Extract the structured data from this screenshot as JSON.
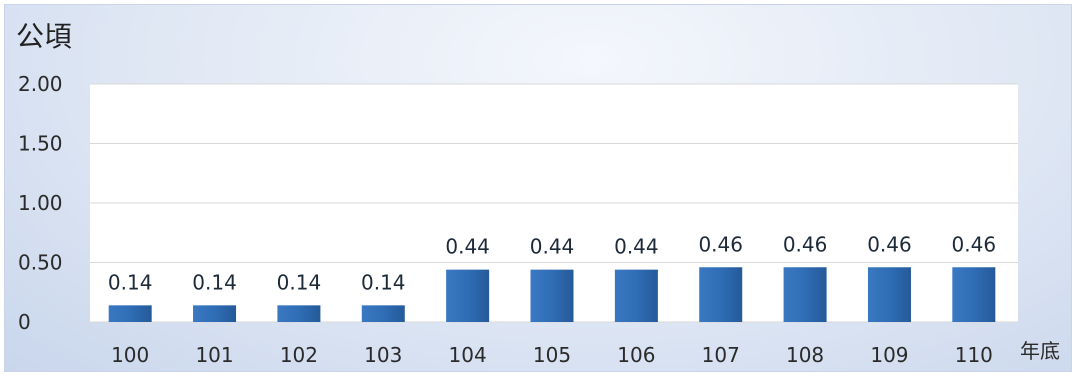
{
  "chart_data": {
    "type": "bar",
    "ylabel": "公頃",
    "xlabel": "年底",
    "categories": [
      "100",
      "101",
      "102",
      "103",
      "104",
      "105",
      "106",
      "107",
      "108",
      "109",
      "110"
    ],
    "values": [
      0.14,
      0.14,
      0.14,
      0.14,
      0.44,
      0.44,
      0.44,
      0.46,
      0.46,
      0.46,
      0.46
    ],
    "value_labels": [
      "0.14",
      "0.14",
      "0.14",
      "0.14",
      "0.44",
      "0.44",
      "0.44",
      "0.46",
      "0.46",
      "0.46",
      "0.46"
    ],
    "yticks": [
      0,
      0.5,
      1.0,
      1.5,
      2.0
    ],
    "ytick_labels": [
      "0",
      "0.50",
      "1.00",
      "1.50",
      "2.00"
    ],
    "ylim": [
      0,
      2.0
    ],
    "grid": true,
    "legend": "none",
    "bar_color": "#2f6db5"
  }
}
